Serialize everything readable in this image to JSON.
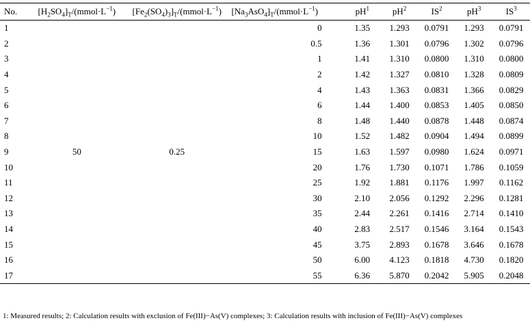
{
  "table": {
    "headers": {
      "no": "No.",
      "h2so4": {
        "pre": "[H",
        "s1": "2",
        "mid": "SO",
        "s2": "4",
        "close": "]",
        "sub_t": "T",
        "unit": "/(mmol·L",
        "exp": "−1",
        "end": ")"
      },
      "fe": {
        "pre": "[Fe",
        "s1": "2",
        "mid": "(SO",
        "s2": "4",
        "mid2": ")",
        "s3": "3",
        "close": "]",
        "sub_t": "T",
        "unit": "/(mmol·L",
        "exp": "−1",
        "end": ")"
      },
      "na": {
        "pre": "[Na",
        "s1": "3",
        "mid": "AsO",
        "s2": "4",
        "close": "]",
        "sub_t": "T",
        "unit": "/(mmol·L",
        "exp": "−1",
        "end": ")"
      },
      "ph1": {
        "base": "pH",
        "sup": "1"
      },
      "ph2": {
        "base": "pH",
        "sup": "2"
      },
      "is2": {
        "base": "IS",
        "sup": "2"
      },
      "ph3": {
        "base": "pH",
        "sup": "3"
      },
      "is3": {
        "base": "IS",
        "sup": "3"
      }
    },
    "shared_h2so4": "50",
    "shared_fe": "0.25",
    "rows": [
      {
        "no": "1",
        "na": "0",
        "ph1": "1.35",
        "ph2": "1.293",
        "is2": "0.0791",
        "ph3": "1.293",
        "is3": "0.0791"
      },
      {
        "no": "2",
        "na": "0.5",
        "ph1": "1.36",
        "ph2": "1.301",
        "is2": "0.0796",
        "ph3": "1.302",
        "is3": "0.0796"
      },
      {
        "no": "3",
        "na": "1",
        "ph1": "1.41",
        "ph2": "1.310",
        "is2": "0.0800",
        "ph3": "1.310",
        "is3": "0.0800"
      },
      {
        "no": "4",
        "na": "2",
        "ph1": "1.42",
        "ph2": "1.327",
        "is2": "0.0810",
        "ph3": "1.328",
        "is3": "0.0809"
      },
      {
        "no": "5",
        "na": "4",
        "ph1": "1.43",
        "ph2": "1.363",
        "is2": "0.0831",
        "ph3": "1.366",
        "is3": "0.0829"
      },
      {
        "no": "6",
        "na": "6",
        "ph1": "1.44",
        "ph2": "1.400",
        "is2": "0.0853",
        "ph3": "1.405",
        "is3": "0.0850"
      },
      {
        "no": "7",
        "na": "8",
        "ph1": "1.48",
        "ph2": "1.440",
        "is2": "0.0878",
        "ph3": "1.448",
        "is3": "0.0874"
      },
      {
        "no": "8",
        "na": "10",
        "ph1": "1.52",
        "ph2": "1.482",
        "is2": "0.0904",
        "ph3": "1.494",
        "is3": "0.0899"
      },
      {
        "no": "9",
        "na": "15",
        "ph1": "1.63",
        "ph2": "1.597",
        "is2": "0.0980",
        "ph3": "1.624",
        "is3": "0.0971"
      },
      {
        "no": "10",
        "na": "20",
        "ph1": "1.76",
        "ph2": "1.730",
        "is2": "0.1071",
        "ph3": "1.786",
        "is3": "0.1059"
      },
      {
        "no": "11",
        "na": "25",
        "ph1": "1.92",
        "ph2": "1.881",
        "is2": "0.1176",
        "ph3": "1.997",
        "is3": "0.1162"
      },
      {
        "no": "12",
        "na": "30",
        "ph1": "2.10",
        "ph2": "2.056",
        "is2": "0.1292",
        "ph3": "2.296",
        "is3": "0.1281"
      },
      {
        "no": "13",
        "na": "35",
        "ph1": "2.44",
        "ph2": "2.261",
        "is2": "0.1416",
        "ph3": "2.714",
        "is3": "0.1410"
      },
      {
        "no": "14",
        "na": "40",
        "ph1": "2.83",
        "ph2": "2.517",
        "is2": "0.1546",
        "ph3": "3.164",
        "is3": "0.1543"
      },
      {
        "no": "15",
        "na": "45",
        "ph1": "3.75",
        "ph2": "2.893",
        "is2": "0.1678",
        "ph3": "3.646",
        "is3": "0.1678"
      },
      {
        "no": "16",
        "na": "50",
        "ph1": "6.00",
        "ph2": "4.123",
        "is2": "0.1818",
        "ph3": "4.730",
        "is3": "0.1820"
      },
      {
        "no": "17",
        "na": "55",
        "ph1": "6.36",
        "ph2": "5.870",
        "is2": "0.2042",
        "ph3": "5.905",
        "is3": "0.2048"
      }
    ]
  },
  "footnote": "1: Measured results; 2: Calculation results with exclusion of Fe(III)−As(V) complexes; 3: Calculation results with inclusion of Fe(III)−As(V) complexes"
}
